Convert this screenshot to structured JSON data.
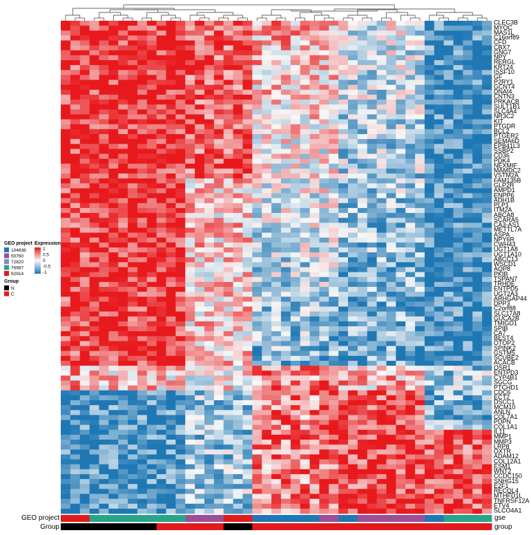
{
  "chart_data": {
    "type": "heatmap",
    "genes": [
      "CLEC3B",
      "MYOC",
      "MAS1L",
      "C16orf89",
      "CFD",
      "CBX7",
      "GNG7",
      "NPY",
      "RERGL",
      "KRT24",
      "ISSF10",
      "GF",
      "P2RY1",
      "GCNT4",
      "DNAI4",
      "CNTN3",
      "PRKACB",
      "SULT1B1",
      "SLC4A4",
      "NR3C2",
      "KIT",
      "PTGDR",
      "BCL2",
      "PTGER2",
      "SEMA6D",
      "EPB41L3",
      "SSBP2",
      "CD36",
      "PDK4",
      "NEXMIF",
      "MAMDC2",
      "VSTM2A",
      "FAM135B",
      "GLP2R",
      "AMPD1",
      "ENPP6",
      "ADH1B",
      "PLP1",
      "ITM2A",
      "ABCA8",
      "SCARA5",
      "CA3-AS1",
      "METTL7A",
      "ASPA",
      "NPY6R",
      "CWH43",
      "UGT1A8",
      "UGT1A10",
      "ABCC13",
      "WSCD1",
      "AQP8",
      "PKIB",
      "TSPAN7",
      "TRHDE",
      "ENTPD5",
      "UGT2A3",
      "ARHGAP44",
      "DPP3",
      "C2orf88",
      "SLC17A8",
      "GUCA2B",
      "TMIGD1",
      "SPIB",
      "CA7",
      "BEST4",
      "OTOP2",
      "SPINK2",
      "GSTM5",
      "SCUBE2",
      "ACACB",
      "OSR1",
      "ENTPD3",
      "CYP4B1",
      "SGCG",
      "PTCHD1",
      "CDC6",
      "ECT2",
      "DSCC1",
      "MCM10",
      "ANLN",
      "COL7A1",
      "PDPN",
      "COL1A1",
      "IL11",
      "MMP1",
      "MMP3",
      "LRP8",
      "OXTR",
      "ADAM12",
      "COL12A1",
      "ESM1",
      "WNT2",
      "CCDC150",
      "SNHG15",
      "E2F1",
      "RECQL4",
      "MTHFD1L",
      "TNFRSF12A",
      "ETV4",
      "SLCO4A1"
    ],
    "gse_segments": [
      {
        "project": "92914",
        "count": 3
      },
      {
        "project": "76987",
        "count": 10
      },
      {
        "project": "50760",
        "count": 4
      },
      {
        "project": "92914",
        "count": 3
      },
      {
        "project": "104836",
        "count": 7
      },
      {
        "project": "50760",
        "count": 2
      },
      {
        "project": "104836",
        "count": 2
      },
      {
        "project": "50760",
        "count": 7
      },
      {
        "project": "104836",
        "count": 2
      },
      {
        "project": "76987",
        "count": 5
      }
    ],
    "group_segments": [
      {
        "group": "N",
        "count": 10
      },
      {
        "group": "C",
        "count": 7
      },
      {
        "group": "N",
        "count": 3
      },
      {
        "group": "C",
        "count": 25
      }
    ],
    "color_scale": {
      "min": -1,
      "max": 1,
      "low": "#1f78b4",
      "mid": "#f7f7f7",
      "high": "#e8191c"
    },
    "annotation_row_labels": {
      "gse": "gse",
      "group": "group"
    },
    "annotation_titles": {
      "gse": "GEO project",
      "group": "Group"
    },
    "legend": {
      "gse_title": "GEO project",
      "gse_items": [
        {
          "label": "104836",
          "color": "#1f78b4"
        },
        {
          "label": "50760",
          "color": "#9b4f96"
        },
        {
          "label": "72820",
          "color": "#7f8fc4"
        },
        {
          "label": "76987",
          "color": "#27a58a"
        },
        {
          "label": "92914",
          "color": "#e31a1c"
        }
      ],
      "expr_title": "Expression",
      "expr_ticks": [
        "1",
        "0.5",
        "0",
        "-0.5",
        "-1"
      ],
      "group_title": "Group",
      "group_items": [
        {
          "label": "N",
          "color": "#000000"
        },
        {
          "label": "C",
          "color": "#e31a1c"
        }
      ]
    }
  }
}
